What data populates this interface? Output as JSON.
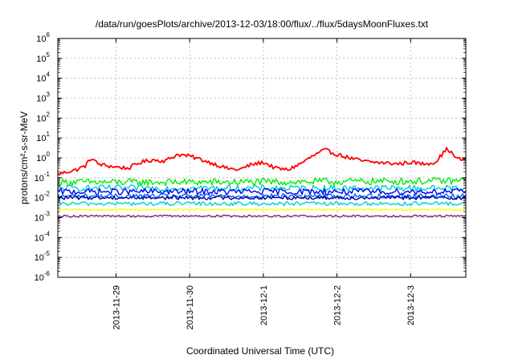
{
  "chart_data": {
    "type": "line",
    "title": "/data/run/goesPlots/archive/2013-12-03/18:00/flux/../flux/5daysMoonFluxes.txt",
    "xlabel": "Coordinated Universal Time (UTC)",
    "ylabel": "protons/cm²-s-sr-MeV",
    "y_scale": "log",
    "ylim": [
      1e-06,
      1000000.0
    ],
    "y_ticks": [
      {
        "base": "10",
        "exp": "-6",
        "value": 1e-06
      },
      {
        "base": "10",
        "exp": "-5",
        "value": 1e-05
      },
      {
        "base": "10",
        "exp": "-4",
        "value": 0.0001
      },
      {
        "base": "10",
        "exp": "-3",
        "value": 0.001
      },
      {
        "base": "10",
        "exp": "-2",
        "value": 0.01
      },
      {
        "base": "10",
        "exp": "-1",
        "value": 0.1
      },
      {
        "base": "10",
        "exp": "0",
        "value": 1
      },
      {
        "base": "10",
        "exp": "1",
        "value": 10
      },
      {
        "base": "10",
        "exp": "2",
        "value": 100
      },
      {
        "base": "10",
        "exp": "3",
        "value": 1000
      },
      {
        "base": "10",
        "exp": "4",
        "value": 10000
      },
      {
        "base": "10",
        "exp": "5",
        "value": 100000
      },
      {
        "base": "10",
        "exp": "6",
        "value": 1000000
      }
    ],
    "xlim": [
      "2013-11-28T05:00",
      "2013-12-03T18:00"
    ],
    "x_ticks": [
      "2013-11-29",
      "2013-11-30",
      "2013-12-1",
      "2013-12-2",
      "2013-12-3"
    ],
    "x_tick_dates": [
      "2013-11-29T00:00",
      "2013-11-30T00:00",
      "2013-12-01T00:00",
      "2013-12-02T00:00",
      "2013-12-03T00:00"
    ],
    "grid": true,
    "legend": "none",
    "series": [
      {
        "color": "#ff0000",
        "points": [
          [
            "2013-11-28T05:00",
            0.15
          ],
          [
            "2013-11-28T08:00",
            0.2
          ],
          [
            "2013-11-28T11:00",
            0.25
          ],
          [
            "2013-11-28T14:00",
            0.4
          ],
          [
            "2013-11-28T16:00",
            1.0
          ],
          [
            "2013-11-28T18:00",
            0.5
          ],
          [
            "2013-11-28T21:00",
            0.4
          ],
          [
            "2013-11-29T00:00",
            0.35
          ],
          [
            "2013-11-29T04:00",
            0.3
          ],
          [
            "2013-11-29T08:00",
            0.6
          ],
          [
            "2013-11-29T12:00",
            0.8
          ],
          [
            "2013-11-29T16:00",
            0.7
          ],
          [
            "2013-11-29T20:00",
            1.5
          ],
          [
            "2013-11-30T00:00",
            1.2
          ],
          [
            "2013-11-30T04:00",
            0.8
          ],
          [
            "2013-11-30T08:00",
            0.5
          ],
          [
            "2013-11-30T12:00",
            0.3
          ],
          [
            "2013-11-30T16:00",
            0.25
          ],
          [
            "2013-11-30T20:00",
            0.45
          ],
          [
            "2013-12-01T00:00",
            0.6
          ],
          [
            "2013-12-01T04:00",
            0.3
          ],
          [
            "2013-12-01T08:00",
            0.25
          ],
          [
            "2013-12-01T12:00",
            0.5
          ],
          [
            "2013-12-01T16:00",
            1.2
          ],
          [
            "2013-12-01T20:00",
            2.5
          ],
          [
            "2013-12-02T00:00",
            1.5
          ],
          [
            "2013-12-02T04:00",
            1.0
          ],
          [
            "2013-12-02T08:00",
            0.7
          ],
          [
            "2013-12-02T12:00",
            0.6
          ],
          [
            "2013-12-02T16:00",
            0.55
          ],
          [
            "2013-12-02T20:00",
            0.5
          ],
          [
            "2013-12-03T00:00",
            0.6
          ],
          [
            "2013-12-03T04:00",
            0.5
          ],
          [
            "2013-12-03T08:00",
            0.6
          ],
          [
            "2013-12-03T12:00",
            3.0
          ],
          [
            "2013-12-03T15:00",
            0.9
          ],
          [
            "2013-12-03T18:00",
            0.8
          ]
        ]
      },
      {
        "color": "#00ee00",
        "points": [
          [
            "2013-11-28T05:00",
            0.06
          ],
          [
            "2013-11-30T12:00",
            0.06
          ],
          [
            "2013-12-03T18:00",
            0.07
          ]
        ]
      },
      {
        "color": "#00cccc",
        "points": [
          [
            "2013-11-28T05:00",
            0.03
          ],
          [
            "2013-11-30T12:00",
            0.03
          ],
          [
            "2013-12-03T18:00",
            0.03
          ]
        ]
      },
      {
        "color": "#0000ff",
        "points": [
          [
            "2013-11-28T05:00",
            0.02
          ],
          [
            "2013-11-30T12:00",
            0.02
          ],
          [
            "2013-12-03T18:00",
            0.02
          ]
        ]
      },
      {
        "color": "#0066ff",
        "points": [
          [
            "2013-11-28T05:00",
            0.012
          ],
          [
            "2013-11-30T12:00",
            0.012
          ],
          [
            "2013-12-03T18:00",
            0.012
          ]
        ]
      },
      {
        "color": "#0000a0",
        "points": [
          [
            "2013-11-28T05:00",
            0.01
          ],
          [
            "2013-11-30T12:00",
            0.01
          ],
          [
            "2013-12-03T18:00",
            0.01
          ]
        ]
      },
      {
        "color": "#00d0d0",
        "points": [
          [
            "2013-11-28T05:00",
            0.005
          ],
          [
            "2013-11-30T12:00",
            0.005
          ],
          [
            "2013-12-03T18:00",
            0.005
          ]
        ]
      },
      {
        "color": "#ffff00",
        "points": [
          [
            "2013-11-28T05:00",
            0.0025
          ],
          [
            "2013-11-30T12:00",
            0.0025
          ],
          [
            "2013-12-03T18:00",
            0.0025
          ]
        ]
      },
      {
        "color": "#8b1a6b",
        "points": [
          [
            "2013-11-28T05:00",
            0.0012
          ],
          [
            "2013-11-30T12:00",
            0.0012
          ],
          [
            "2013-12-03T18:00",
            0.0012
          ]
        ]
      }
    ]
  }
}
